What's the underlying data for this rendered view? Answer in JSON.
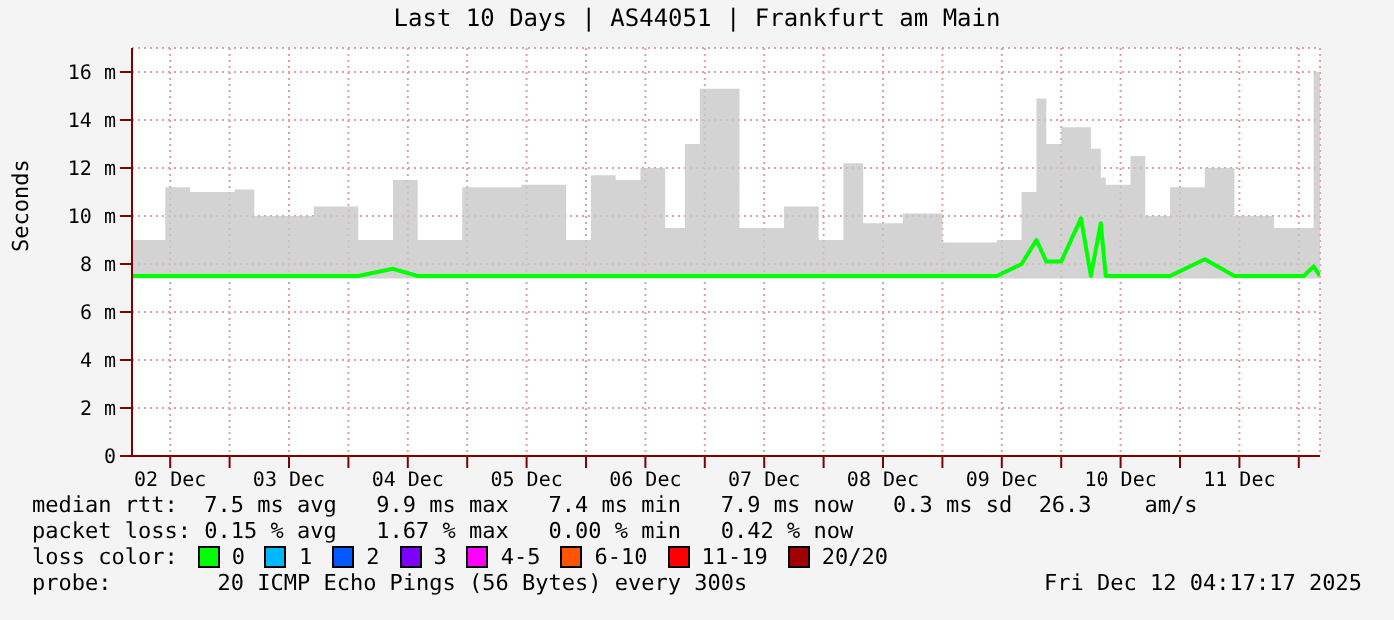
{
  "chart_data": {
    "type": "line",
    "title": "Last 10 Days | AS44051 | Frankfurt am Main",
    "ylabel": "Seconds",
    "x": [
      "2025-12-02T04:17",
      "2025-12-02T11:00",
      "2025-12-02T16:00",
      "2025-12-03T01:00",
      "2025-12-03T05:00",
      "2025-12-03T17:00",
      "2025-12-04T02:00",
      "2025-12-04T09:00",
      "2025-12-04T14:00",
      "2025-12-04T23:00",
      "2025-12-05T11:00",
      "2025-12-05T20:00",
      "2025-12-06T01:00",
      "2025-12-06T06:00",
      "2025-12-06T11:00",
      "2025-12-06T16:00",
      "2025-12-06T20:00",
      "2025-12-06T23:00",
      "2025-12-07T07:00",
      "2025-12-07T16:00",
      "2025-12-07T23:00",
      "2025-12-08T04:00",
      "2025-12-08T08:00",
      "2025-12-08T16:00",
      "2025-12-09T00:00",
      "2025-12-09T11:00",
      "2025-12-09T16:00",
      "2025-12-09T19:00",
      "2025-12-09T21:00",
      "2025-12-10T00:00",
      "2025-12-10T04:00",
      "2025-12-10T06:00",
      "2025-12-10T08:00",
      "2025-12-10T09:00",
      "2025-12-10T14:00",
      "2025-12-10T17:00",
      "2025-12-10T22:00",
      "2025-12-11T05:00",
      "2025-12-11T11:00",
      "2025-12-11T19:00",
      "2025-12-12T01:00",
      "2025-12-12T03:00",
      "2025-12-12T04:17"
    ],
    "series": [
      {
        "color": "#00ff00",
        "values": [
          7.5,
          7.5,
          7.5,
          7.5,
          7.5,
          7.5,
          7.5,
          7.8,
          7.5,
          7.5,
          7.5,
          7.5,
          7.5,
          7.5,
          7.5,
          7.5,
          7.5,
          7.5,
          7.5,
          7.5,
          7.5,
          7.5,
          7.5,
          7.5,
          7.5,
          7.5,
          8.0,
          9.0,
          8.1,
          8.1,
          9.9,
          7.5,
          9.7,
          7.5,
          7.5,
          7.5,
          7.5,
          8.2,
          7.5,
          7.5,
          7.5,
          7.9,
          7.5
        ],
        "lower": [
          7.4,
          7.4,
          7.4,
          7.4,
          7.4,
          7.4,
          7.4,
          7.4,
          7.4,
          7.4,
          7.4,
          7.4,
          7.4,
          7.4,
          7.4,
          7.4,
          7.4,
          7.4,
          7.4,
          7.4,
          7.4,
          7.4,
          7.4,
          7.4,
          7.4,
          7.4,
          7.4,
          7.4,
          7.4,
          7.4,
          7.4,
          7.4,
          7.4,
          7.4,
          7.4,
          7.4,
          7.4,
          7.4,
          7.4,
          7.4,
          7.4,
          7.4,
          7.4
        ],
        "upper": [
          9.0,
          11.2,
          11.0,
          11.1,
          10.0,
          10.4,
          9.0,
          11.5,
          9.0,
          11.2,
          11.3,
          9.0,
          11.7,
          11.5,
          12.0,
          9.5,
          13.0,
          15.3,
          9.5,
          10.4,
          9.0,
          12.2,
          9.7,
          10.1,
          8.9,
          9.0,
          11.0,
          14.9,
          13.0,
          13.7,
          13.7,
          12.8,
          11.6,
          11.3,
          12.5,
          10.0,
          11.2,
          12.0,
          10.0,
          9.5,
          9.5,
          16.0,
          9.0
        ]
      }
    ],
    "xlim": [
      "2025-12-02T04:17",
      "2025-12-12T04:17"
    ],
    "xticks": [
      {
        "value": "2025-12-02T12:00",
        "label": "02 Dec"
      },
      {
        "value": "2025-12-03",
        "label": null
      },
      {
        "value": "2025-12-03T12:00",
        "label": "03 Dec"
      },
      {
        "value": "2025-12-04",
        "label": null
      },
      {
        "value": "2025-12-04T12:00",
        "label": "04 Dec"
      },
      {
        "value": "2025-12-05",
        "label": null
      },
      {
        "value": "2025-12-05T12:00",
        "label": "05 Dec"
      },
      {
        "value": "2025-12-06",
        "label": null
      },
      {
        "value": "2025-12-06T12:00",
        "label": "06 Dec"
      },
      {
        "value": "2025-12-07",
        "label": null
      },
      {
        "value": "2025-12-07T12:00",
        "label": "07 Dec"
      },
      {
        "value": "2025-12-08",
        "label": null
      },
      {
        "value": "2025-12-08T12:00",
        "label": "08 Dec"
      },
      {
        "value": "2025-12-09",
        "label": null
      },
      {
        "value": "2025-12-09T12:00",
        "label": "09 Dec"
      },
      {
        "value": "2025-12-10",
        "label": null
      },
      {
        "value": "2025-12-10T12:00",
        "label": "10 Dec"
      },
      {
        "value": "2025-12-11",
        "label": null
      },
      {
        "value": "2025-12-11T12:00",
        "label": "11 Dec"
      },
      {
        "value": "2025-12-12",
        "label": null
      }
    ],
    "ylim": [
      0,
      17
    ],
    "yticks": [
      0,
      {
        "value": 2,
        "label": "2 m"
      },
      {
        "value": 4,
        "label": "4 m"
      },
      {
        "value": 6,
        "label": "6 m"
      },
      {
        "value": 8,
        "label": "8 m"
      },
      {
        "value": 10,
        "label": "10 m"
      },
      {
        "value": 12,
        "label": "12 m"
      },
      {
        "value": 14,
        "label": "14 m"
      },
      {
        "value": 16,
        "label": "16 m"
      }
    ],
    "grid": true,
    "annotations": [
      "median rtt:  7.5 ms avg   9.9 ms max   7.4 ms min   7.9 ms now   0.3 ms sd  26.3    am/s",
      "packet loss: 0.15 % avg   1.67 % max   0.00 % min   0.42 % now",
      "loss color:",
      "0",
      "1",
      "2",
      "3",
      "4-5",
      "6-10",
      "11-19",
      "20/20",
      "probe:        20 ICMP Echo Pings (56 Bytes) every 300s",
      "Fri Dec 12 04:17:17 2025"
    ]
  }
}
